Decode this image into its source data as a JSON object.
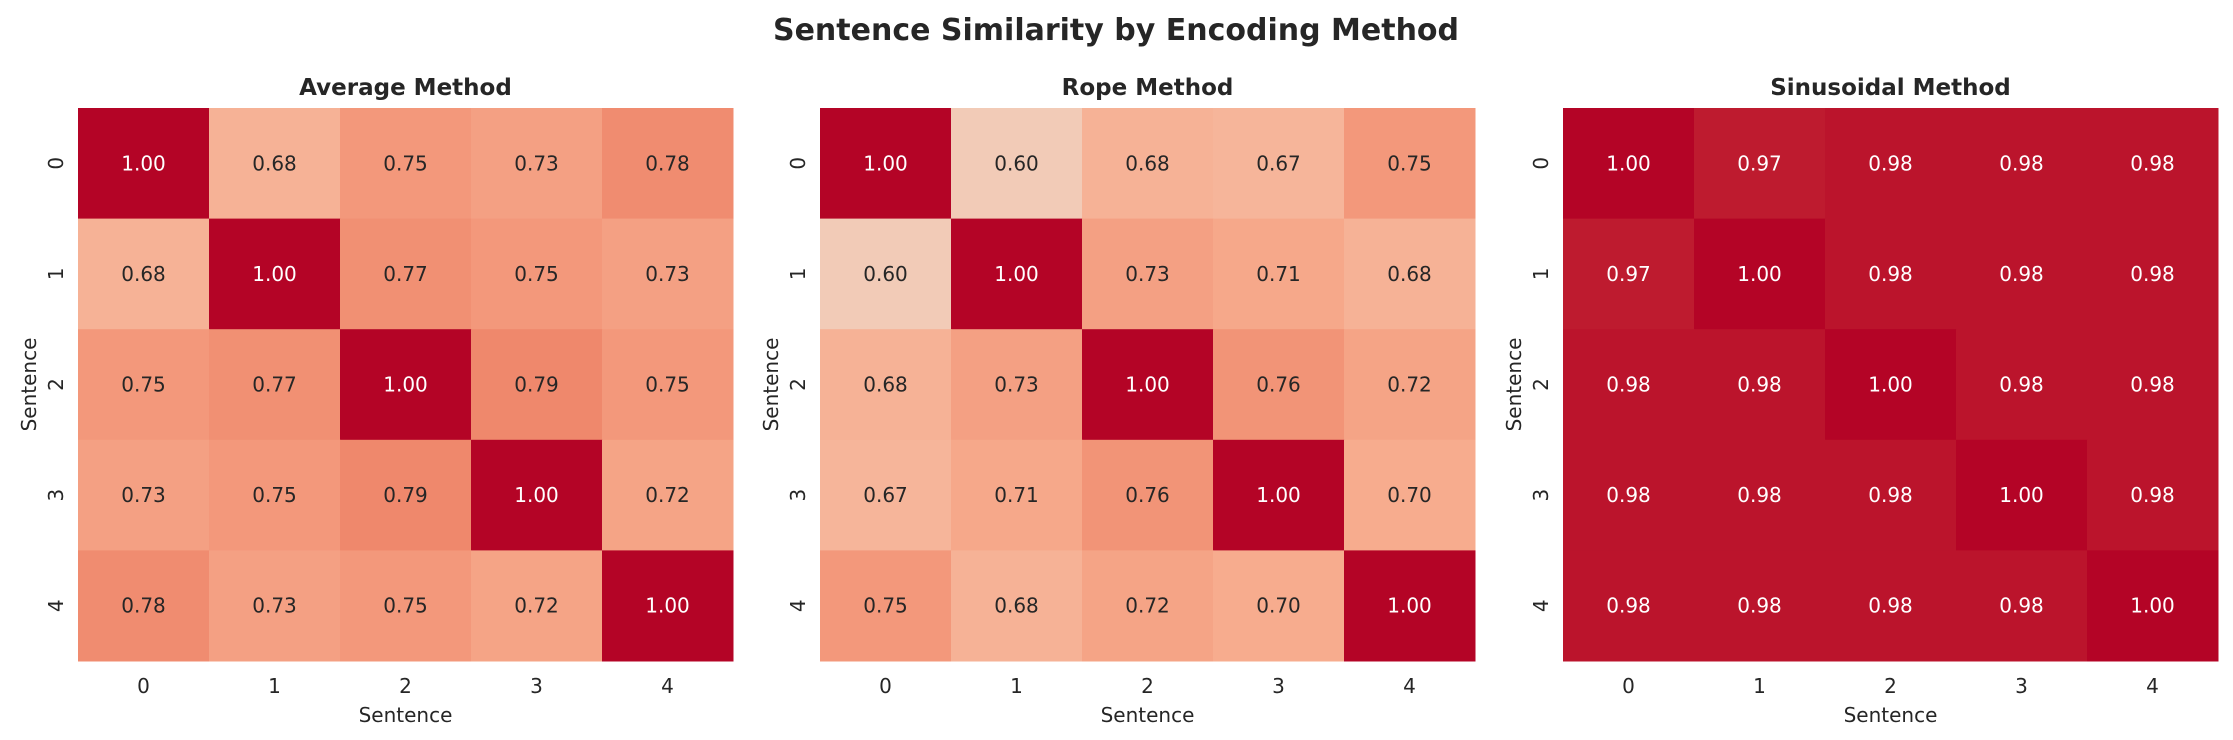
{
  "chart_data": {
    "title": "Sentence Similarity by Encoding Method",
    "colormap": "coolwarm",
    "color_range": [
      0,
      1
    ],
    "value_format": "0.00",
    "plots": [
      {
        "type": "heatmap",
        "title": "Average Method",
        "xlabel": "Sentence",
        "ylabel": "Sentence",
        "x_ticks": [
          "0",
          "1",
          "2",
          "3",
          "4"
        ],
        "y_ticks": [
          "0",
          "1",
          "2",
          "3",
          "4"
        ],
        "values": [
          [
            1.0,
            0.68,
            0.75,
            0.73,
            0.78
          ],
          [
            0.68,
            1.0,
            0.77,
            0.75,
            0.73
          ],
          [
            0.75,
            0.77,
            1.0,
            0.79,
            0.75
          ],
          [
            0.73,
            0.75,
            0.79,
            1.0,
            0.72
          ],
          [
            0.78,
            0.73,
            0.75,
            0.72,
            1.0
          ]
        ]
      },
      {
        "type": "heatmap",
        "title": "Rope Method",
        "xlabel": "Sentence",
        "ylabel": "Sentence",
        "x_ticks": [
          "0",
          "1",
          "2",
          "3",
          "4"
        ],
        "y_ticks": [
          "0",
          "1",
          "2",
          "3",
          "4"
        ],
        "values": [
          [
            1.0,
            0.6,
            0.68,
            0.67,
            0.75
          ],
          [
            0.6,
            1.0,
            0.73,
            0.71,
            0.68
          ],
          [
            0.68,
            0.73,
            1.0,
            0.76,
            0.72
          ],
          [
            0.67,
            0.71,
            0.76,
            1.0,
            0.7
          ],
          [
            0.75,
            0.68,
            0.72,
            0.7,
            1.0
          ]
        ]
      },
      {
        "type": "heatmap",
        "title": "Sinusoidal Method",
        "xlabel": "Sentence",
        "ylabel": "Sentence",
        "x_ticks": [
          "0",
          "1",
          "2",
          "3",
          "4"
        ],
        "y_ticks": [
          "0",
          "1",
          "2",
          "3",
          "4"
        ],
        "values": [
          [
            1.0,
            0.97,
            0.98,
            0.98,
            0.98
          ],
          [
            0.97,
            1.0,
            0.98,
            0.98,
            0.98
          ],
          [
            0.98,
            0.98,
            1.0,
            0.98,
            0.98
          ],
          [
            0.98,
            0.98,
            0.98,
            1.0,
            0.98
          ],
          [
            0.98,
            0.98,
            0.98,
            0.98,
            1.0
          ]
        ]
      }
    ]
  }
}
